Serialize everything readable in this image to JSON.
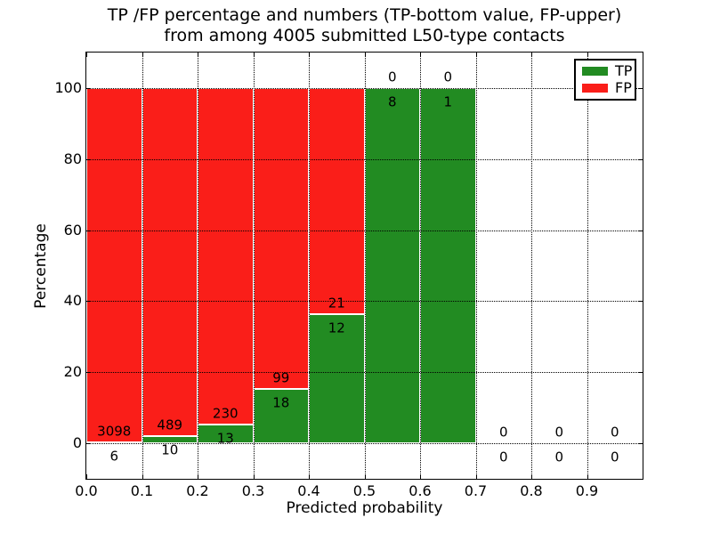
{
  "figure": {
    "title_line1": "TP /FP percentage and numbers (TP-bottom value, FP-upper)",
    "title_line2": "from among 4005 submitted L50-type contacts"
  },
  "chart_data": {
    "type": "bar",
    "variant": "stacked-percentage",
    "title": "TP /FP percentage and numbers (TP-bottom value, FP-upper) from among 4005 submitted L50-type contacts",
    "xlabel": "Predicted probability",
    "ylabel": "Percentage",
    "total_contacts": 4005,
    "bins_start": [
      0.0,
      0.1,
      0.2,
      0.3,
      0.4,
      0.5,
      0.6,
      0.7,
      0.8,
      0.9
    ],
    "bin_width": 0.1,
    "series": [
      {
        "name": "TP",
        "color": "#228b22",
        "counts": [
          6,
          10,
          13,
          18,
          12,
          8,
          1,
          0,
          0,
          0
        ]
      },
      {
        "name": "FP",
        "color": "#fa1e19",
        "counts": [
          3098,
          489,
          230,
          99,
          21,
          0,
          0,
          0,
          0,
          0
        ]
      }
    ],
    "tp_percent_of_bin": [
      0.19,
      2.0,
      5.35,
      15.38,
      36.36,
      100.0,
      100.0,
      null,
      null,
      null
    ],
    "xticks": [
      0.0,
      0.1,
      0.2,
      0.3,
      0.4,
      0.5,
      0.6,
      0.7,
      0.8,
      0.9
    ],
    "yticks": [
      0,
      20,
      40,
      60,
      80,
      100
    ],
    "xlim": [
      0.0,
      1.0
    ],
    "ylim": [
      -10,
      110
    ],
    "grid": "dotted",
    "legend": {
      "position": "upper-right",
      "entries": [
        "TP",
        "FP"
      ]
    }
  }
}
